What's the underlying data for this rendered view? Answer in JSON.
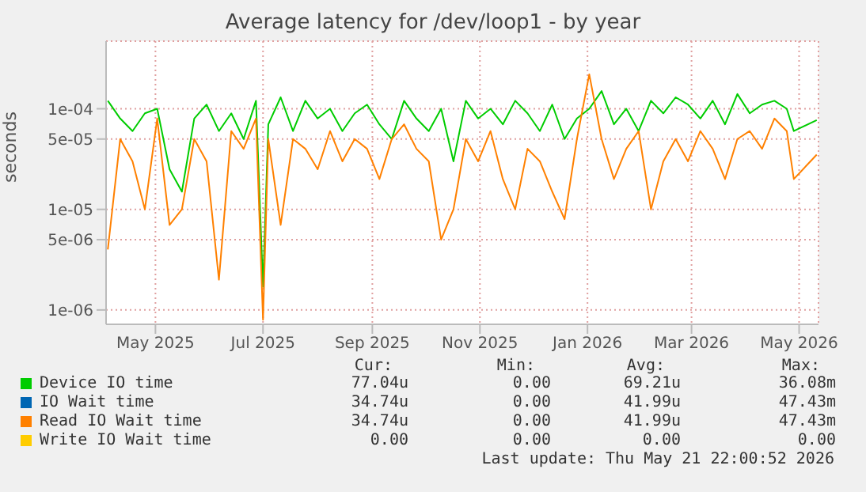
{
  "chart_data": {
    "type": "line",
    "title": "Average latency for /dev/loop1 - by year",
    "ylabel": "seconds",
    "log": true,
    "grid": true,
    "legend": "bottom",
    "x": [
      "2025-04-04",
      "2025-04-11",
      "2025-04-18",
      "2025-04-25",
      "2025-05-02",
      "2025-05-09",
      "2025-05-16",
      "2025-05-23",
      "2025-05-30",
      "2025-06-06",
      "2025-06-13",
      "2025-06-20",
      "2025-06-27",
      "2025-07-01",
      "2025-07-04",
      "2025-07-11",
      "2025-07-18",
      "2025-07-25",
      "2025-08-01",
      "2025-08-08",
      "2025-08-15",
      "2025-08-22",
      "2025-08-29",
      "2025-09-05",
      "2025-09-12",
      "2025-09-19",
      "2025-09-26",
      "2025-10-03",
      "2025-10-10",
      "2025-10-17",
      "2025-10-24",
      "2025-10-31",
      "2025-11-07",
      "2025-11-14",
      "2025-11-21",
      "2025-11-28",
      "2025-12-05",
      "2025-12-12",
      "2025-12-19",
      "2025-12-26",
      "2026-01-02",
      "2026-01-09",
      "2026-01-16",
      "2026-01-23",
      "2026-01-30",
      "2026-02-06",
      "2026-02-13",
      "2026-02-20",
      "2026-02-27",
      "2026-03-06",
      "2026-03-13",
      "2026-03-20",
      "2026-03-27",
      "2026-04-03",
      "2026-04-10",
      "2026-04-17",
      "2026-04-24",
      "2026-04-28",
      "2026-05-11"
    ],
    "xlim": [
      "2025-04-03",
      "2026-05-12"
    ],
    "xticks": [
      {
        "value": "2025-05-01",
        "label": "May 2025"
      },
      {
        "value": "2025-07-01",
        "label": "Jul 2025"
      },
      {
        "value": "2025-09-01",
        "label": "Sep 2025"
      },
      {
        "value": "2025-11-01",
        "label": "Nov 2025"
      },
      {
        "value": "2026-01-01",
        "label": "Jan 2026"
      },
      {
        "value": "2026-03-01",
        "label": "Mar 2026"
      },
      {
        "value": "2026-05-01",
        "label": "May 2026"
      }
    ],
    "ylim": [
      7.2e-07,
      0.00047
    ],
    "yticks": [
      {
        "value": 1e-06,
        "label": "1e-06"
      },
      {
        "value": 5e-06,
        "label": "5e-06"
      },
      {
        "value": 1e-05,
        "label": "1e-05"
      },
      {
        "value": 5e-05,
        "label": "5e-05"
      },
      {
        "value": 0.0001,
        "label": "1e-04"
      }
    ],
    "series": [
      {
        "name": "Device IO time",
        "color": "#00cc00",
        "values": [
          0.00012,
          8e-05,
          6e-05,
          9e-05,
          0.0001,
          2.5e-05,
          1.5e-05,
          8e-05,
          0.00011,
          6e-05,
          9e-05,
          5e-05,
          0.00012,
          1.7e-06,
          7e-05,
          0.00013,
          6e-05,
          0.00012,
          8e-05,
          0.0001,
          6e-05,
          9e-05,
          0.00011,
          7e-05,
          5e-05,
          0.00012,
          8e-05,
          6e-05,
          0.0001,
          3e-05,
          0.00012,
          8e-05,
          0.0001,
          7e-05,
          0.00012,
          9e-05,
          6e-05,
          0.00011,
          5e-05,
          8e-05,
          0.0001,
          0.00015,
          7e-05,
          0.0001,
          6e-05,
          0.00012,
          9e-05,
          0.00013,
          0.00011,
          8e-05,
          0.00012,
          7e-05,
          0.00014,
          9e-05,
          0.00011,
          0.00012,
          0.0001,
          6e-05,
          7.7e-05
        ]
      },
      {
        "name": "IO Wait time",
        "color": "#0066b3",
        "values": [
          null,
          null,
          null,
          null,
          null,
          null,
          null,
          null,
          null,
          null,
          null,
          null,
          null,
          null,
          null,
          null,
          null,
          null,
          null,
          null,
          null,
          null,
          null,
          null,
          null,
          null,
          null,
          null,
          null,
          null,
          null,
          null,
          null,
          null,
          null,
          null,
          null,
          null,
          null,
          null,
          null,
          null,
          null,
          null,
          null,
          null,
          null,
          null,
          null,
          null,
          null,
          null,
          null,
          null,
          null,
          null,
          null,
          null,
          null
        ]
      },
      {
        "name": "Read IO Wait time",
        "color": "#ff8000",
        "values": [
          4e-06,
          5e-05,
          3e-05,
          1e-05,
          8e-05,
          7e-06,
          1e-05,
          5e-05,
          3e-05,
          2e-06,
          6e-05,
          4e-05,
          8e-05,
          8e-07,
          5e-05,
          7e-06,
          5e-05,
          4e-05,
          2.5e-05,
          6e-05,
          3e-05,
          5e-05,
          4e-05,
          2e-05,
          5e-05,
          7e-05,
          4e-05,
          3e-05,
          5e-06,
          1e-05,
          5e-05,
          3e-05,
          6e-05,
          2e-05,
          1e-05,
          4e-05,
          3e-05,
          1.5e-05,
          8e-06,
          5e-05,
          0.00022,
          5e-05,
          2e-05,
          4e-05,
          6e-05,
          1e-05,
          3e-05,
          5e-05,
          3e-05,
          6e-05,
          4e-05,
          2e-05,
          5e-05,
          6e-05,
          4e-05,
          8e-05,
          6e-05,
          2e-05,
          3.5e-05
        ]
      },
      {
        "name": "Write IO Wait time",
        "color": "#ffcc00",
        "values": [
          null,
          null,
          null,
          null,
          null,
          null,
          null,
          null,
          null,
          null,
          null,
          null,
          null,
          null,
          null,
          null,
          null,
          null,
          null,
          null,
          null,
          null,
          null,
          null,
          null,
          null,
          null,
          null,
          null,
          null,
          null,
          null,
          null,
          null,
          null,
          null,
          null,
          null,
          null,
          null,
          null,
          null,
          null,
          null,
          null,
          null,
          null,
          null,
          null,
          null,
          null,
          null,
          null,
          null,
          null,
          null,
          null,
          null,
          null
        ]
      }
    ],
    "annotations": [
      "Cur:",
      "Min:",
      "Avg:",
      "Max:",
      "77.04u",
      "0.00",
      "69.21u",
      "36.08m",
      "34.74u",
      "0.00",
      "41.99u",
      "47.43m",
      "34.74u",
      "0.00",
      "41.99u",
      "47.43m",
      "0.00",
      "0.00",
      "0.00",
      "0.00",
      "Last update: Thu May 21 22:00:52 2026"
    ]
  }
}
